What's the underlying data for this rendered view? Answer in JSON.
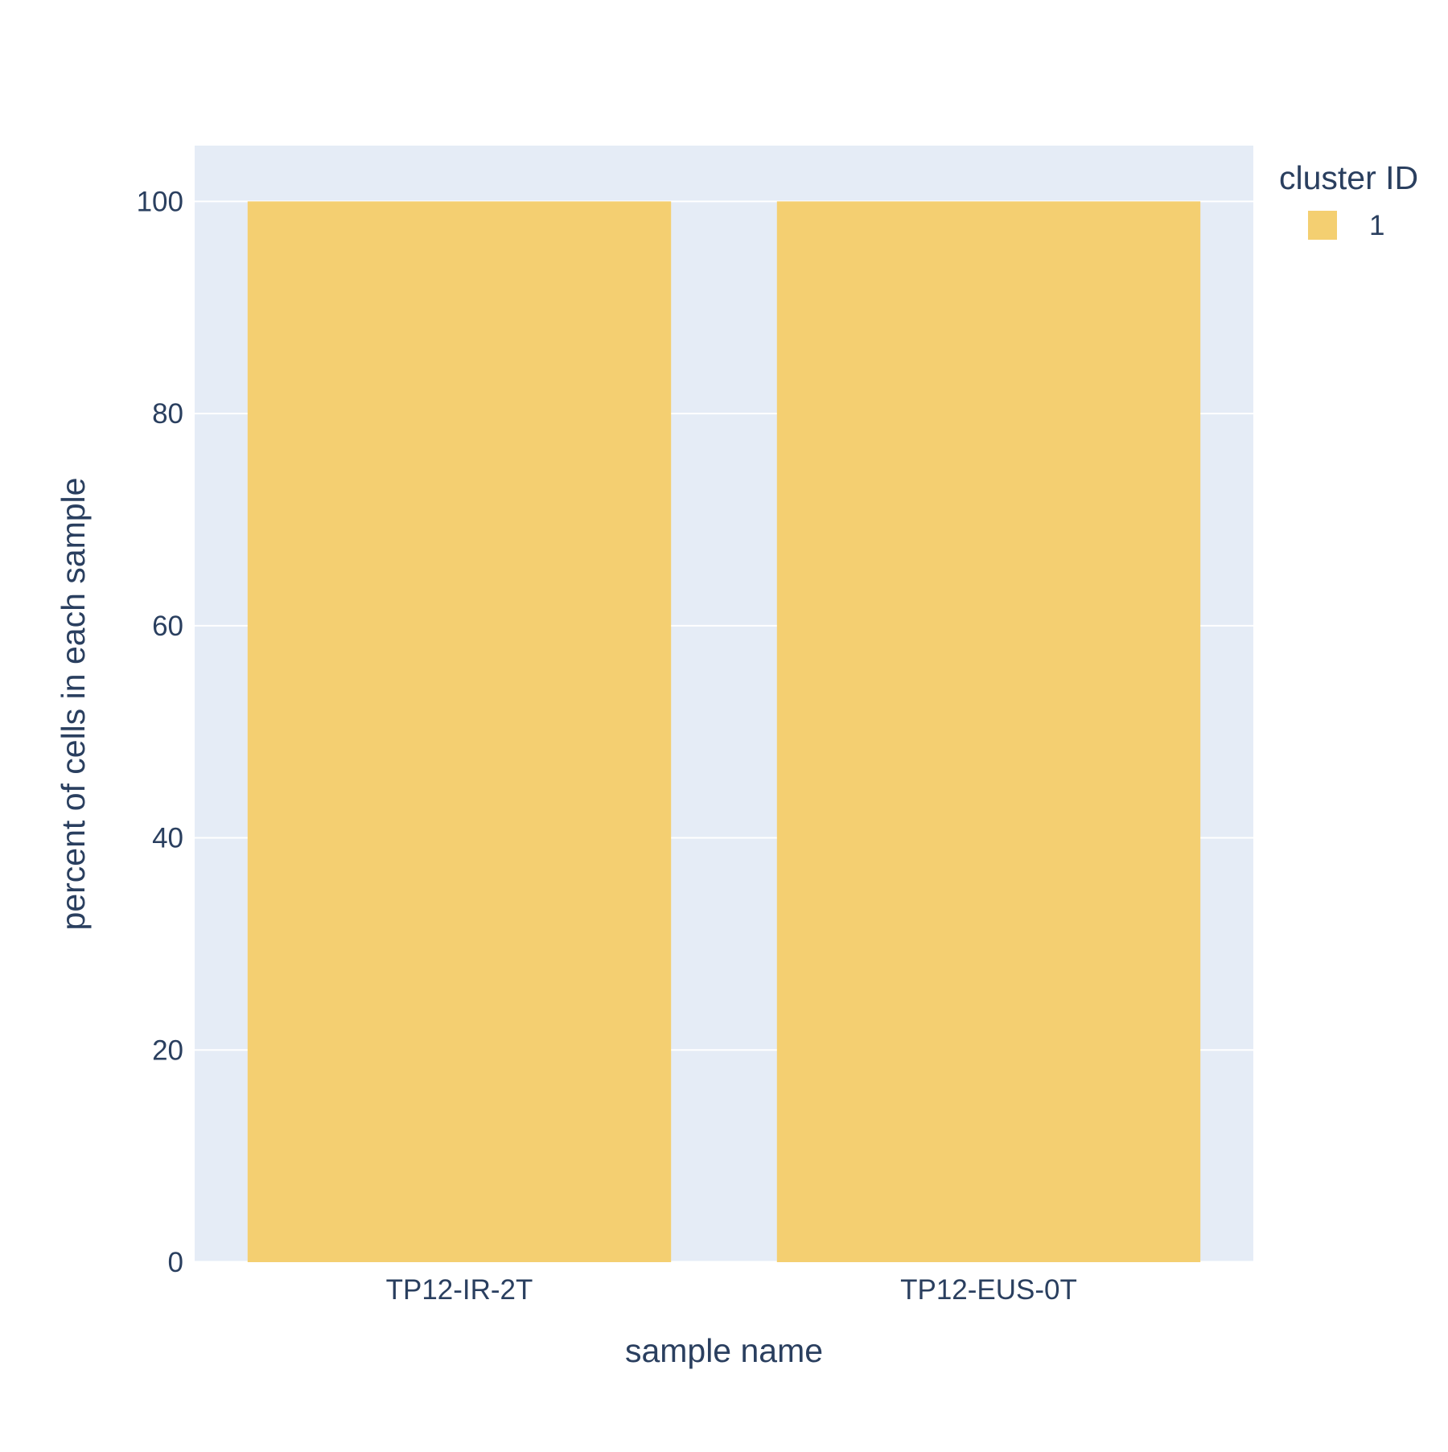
{
  "chart_data": {
    "type": "bar",
    "barmode": "stack",
    "categories": [
      "TP12-IR-2T",
      "TP12-EUS-0T"
    ],
    "series": [
      {
        "name": "1",
        "values": [
          100,
          100
        ],
        "color": "#F4CF71"
      }
    ],
    "title": "",
    "xlabel": "sample name",
    "ylabel": "percent of cells in each sample",
    "ylim": [
      0,
      105.26
    ],
    "yticks": [
      0,
      20,
      40,
      60,
      80,
      100
    ],
    "grid": true,
    "legend": {
      "title": "cluster ID",
      "placement": "top-right"
    },
    "plot_bgcolor": "#E5ECF6",
    "gridcolor": "#ffffff",
    "text_color": "#2a3f5f"
  }
}
